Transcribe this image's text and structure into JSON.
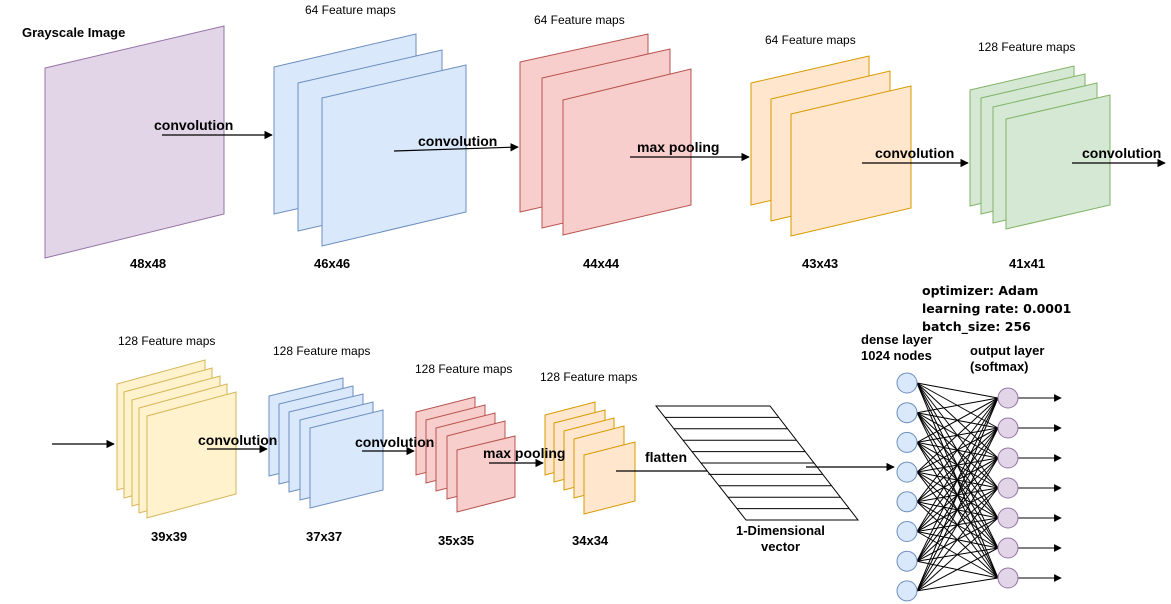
{
  "colors": {
    "purple_fill": "#e1d5e7",
    "purple_stroke": "#9673a6",
    "blue_fill": "#dae8fc",
    "blue_stroke": "#6c8ebf",
    "red_fill": "#f8cecc",
    "red_stroke": "#b85450",
    "orange_fill": "#ffe6cc",
    "orange_stroke": "#d79b00",
    "green_fill": "#d5e8d4",
    "green_stroke": "#82b366",
    "yellow_fill": "#fff2cc",
    "yellow_stroke": "#d6b656",
    "node_blue_fill": "#dae8fc",
    "node_purple_fill": "#e1d5e7"
  },
  "labels": {
    "input_title": "Grayscale Image",
    "fm1": "64 Feature maps",
    "fm2": "64 Feature maps",
    "fm3": "64 Feature maps",
    "fm4": "128 Feature maps",
    "fm5": "128 Feature maps",
    "fm6": "128 Feature maps",
    "fm7": "128 Feature maps",
    "fm8": "128 Feature maps",
    "op1": "convolution",
    "op2": "convolution",
    "op3": "max pooling",
    "op4": "convolution",
    "op5": "convolution",
    "op6": "convolution",
    "op7": "convolution",
    "op8": "max pooling",
    "op9": "flatten",
    "size1": "48x48",
    "size2": "46x46",
    "size3": "44x44",
    "size4": "43x43",
    "size5": "41x41",
    "size6": "39x39",
    "size7": "37x37",
    "size8": "35x35",
    "size9": "34x34",
    "vector_line1": "1-Dimensional",
    "vector_line2": "vector",
    "dense_line1": "dense layer",
    "dense_line2": "1024 nodes",
    "output_line1": "output layer",
    "output_line2": "(softmax)",
    "optimizer": "optimizer: Adam",
    "learning_rate": "learning rate: 0.0001",
    "batch_size": "batch_size: 256"
  }
}
